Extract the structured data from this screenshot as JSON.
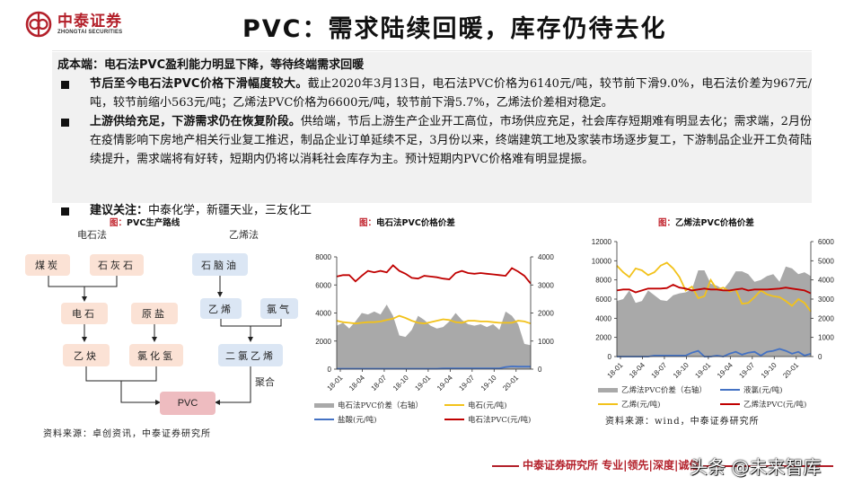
{
  "header": {
    "logo_cn": "中泰证券",
    "logo_en": "ZHONGTAI SECURITIES",
    "title": "PVC：需求陆续回暖，库存仍待去化"
  },
  "summary": {
    "lead": "成本端：电石法PVC盈利能力明显下降，等待终端需求回暖",
    "bullets": [
      {
        "bold": "节后至今电石法PVC价格下滑幅度较大。",
        "text": "截止2020年3月13日，电石法PVC价格为6140元/吨，较节前下滑9.0%，电石法价差为967元/吨，较节前缩小563元/吨；乙烯法PVC价格为6600元/吨，较节前下滑5.7%，乙烯法价差相对稳定。"
      },
      {
        "bold": "上游供给充足，下游需求仍在恢复阶段。",
        "text": "供给端，节后上游生产企业开工高位，市场供应充足，社会库存短期难有明显去化；需求端，2月份在疫情影响下房地产相关行业复工推迟，制品企业订单延续不足，3月份以来，终端建筑工地及家装市场逐步复工，下游制品企业开工负荷陆续提升，需求端将有好转，短期内仍将以消耗社会库存为主。预计短期内PVC价格难有明显提振。"
      }
    ],
    "recommendation": {
      "bold": "建议关注：",
      "text": "中泰化学，新疆天业，三友化工"
    }
  },
  "figures": {
    "tag": "图：",
    "flow": {
      "title": "PVC生产路线",
      "left_route": "电石法",
      "right_route": "乙烯法",
      "nodes": {
        "coal": "煤炭",
        "limestone": "石灰石",
        "carbide": "电石",
        "salt": "原盐",
        "acetylene": "乙炔",
        "hcl": "氯化氢",
        "naphtha": "石脑油",
        "ethylene": "乙烯",
        "chlorine": "氯气",
        "edc": "二氯乙烯",
        "pvc": "PVC"
      },
      "polymerize": "聚合",
      "source": "资料来源：卓创资讯，中泰证券研究所"
    },
    "chart1_title": "电石法PVC价格价差",
    "chart2_title": "乙烯法PVC价格价差",
    "chart2_source": "资料来源：wind，中泰证券研究所"
  },
  "chart_data": [
    {
      "type": "line",
      "title": "电石法PVC价格价差",
      "x_ticks": [
        "18-01",
        "18-04",
        "18-07",
        "18-10",
        "19-01",
        "19-04",
        "19-07",
        "19-10",
        "20-01"
      ],
      "ylim_left": [
        0,
        8000
      ],
      "yticks_left": [
        0,
        2000,
        4000,
        6000,
        8000
      ],
      "ylim_right": [
        0,
        4000
      ],
      "yticks_right": [
        0,
        1000,
        2000,
        3000,
        4000
      ],
      "series": [
        {
          "name": "电石法PVC价差（右轴）",
          "kind": "area",
          "axis": "right",
          "color": "#a9a9a9",
          "values": [
            1550,
            1650,
            1450,
            1700,
            2000,
            1950,
            2050,
            1950,
            2300,
            1900,
            1200,
            1150,
            1400,
            1900,
            1750,
            1550,
            1450,
            1500,
            1700,
            2000,
            1750,
            1600,
            1550,
            1600,
            1500,
            1600,
            1400,
            2050,
            1900,
            1600,
            900,
            850
          ]
        },
        {
          "name": "电石(元/吨)",
          "kind": "line",
          "axis": "left",
          "color": "#f2c21b",
          "values": [
            3450,
            3350,
            3300,
            3250,
            3300,
            3350,
            3350,
            3400,
            3500,
            3600,
            3800,
            3650,
            3450,
            3300,
            3250,
            3350,
            3450,
            3550,
            3500,
            3350,
            3300,
            3450,
            3450,
            3400,
            3400,
            3350,
            3300,
            3300,
            3300,
            3450,
            3400,
            3250
          ]
        },
        {
          "name": "盐酸(元/吨)",
          "kind": "line",
          "axis": "left",
          "color": "#4472c4",
          "values": [
            30,
            30,
            30,
            30,
            30,
            30,
            30,
            30,
            30,
            30,
            30,
            30,
            30,
            30,
            30,
            30,
            30,
            50,
            60,
            60,
            60,
            60,
            60,
            60,
            60,
            60,
            60,
            150,
            200,
            180,
            180,
            180
          ]
        },
        {
          "name": "电石法PVC(元/吨)",
          "kind": "line",
          "axis": "left",
          "color": "#c00000",
          "values": [
            6600,
            6700,
            6700,
            6250,
            6650,
            7000,
            6900,
            7000,
            6900,
            7400,
            7000,
            6800,
            6500,
            6450,
            6650,
            6600,
            6550,
            6450,
            6400,
            6850,
            7000,
            6850,
            6800,
            6850,
            6800,
            6750,
            6700,
            6650,
            7200,
            6950,
            6650,
            6100
          ]
        }
      ]
    },
    {
      "type": "line",
      "title": "乙烯法PVC价格价差",
      "x_ticks": [
        "18-01",
        "18-04",
        "18-07",
        "18-10",
        "19-01",
        "19-04",
        "19-07",
        "19-10",
        "20-01"
      ],
      "ylim_left": [
        0,
        12000
      ],
      "yticks_left": [
        0,
        2000,
        4000,
        6000,
        8000,
        10000,
        12000
      ],
      "ylim_right": [
        0,
        6000
      ],
      "yticks_right": [
        0,
        1000,
        2000,
        3000,
        4000,
        5000,
        6000
      ],
      "series": [
        {
          "name": "乙烯法PVC价差（右轴）",
          "kind": "area",
          "axis": "right",
          "color": "#a9a9a9",
          "values": [
            2900,
            3000,
            3450,
            2800,
            2900,
            3450,
            3200,
            2950,
            2900,
            3200,
            3300,
            3350,
            3500,
            4500,
            4500,
            3800,
            3700,
            3500,
            3900,
            4450,
            4450,
            4300,
            3900,
            4000,
            4200,
            4300,
            3900,
            4700,
            4600,
            4300,
            4400,
            4200
          ]
        },
        {
          "name": "液氯(元/吨)",
          "kind": "line",
          "axis": "left",
          "color": "#4472c4",
          "values": [
            0,
            0,
            0,
            0,
            0,
            0,
            100,
            100,
            100,
            100,
            100,
            100,
            400,
            600,
            0,
            0,
            100,
            0,
            300,
            500,
            200,
            400,
            500,
            100,
            500,
            600,
            800,
            600,
            300,
            500,
            100,
            300
          ]
        },
        {
          "name": "乙烯(元/吨)",
          "kind": "line",
          "axis": "left",
          "color": "#f2c21b",
          "values": [
            9500,
            8800,
            8300,
            9200,
            9000,
            8500,
            8800,
            9500,
            9800,
            9200,
            8300,
            6900,
            7300,
            6100,
            6300,
            8000,
            7000,
            7200,
            6800,
            7000,
            5500,
            5600,
            6200,
            6900,
            6500,
            6300,
            6200,
            5800,
            5300,
            6000,
            5600,
            4700
          ]
        },
        {
          "name": "乙烯法PVC(元/吨)",
          "kind": "line",
          "axis": "left",
          "color": "#c00000",
          "values": [
            6900,
            7000,
            7000,
            6700,
            6900,
            7100,
            7100,
            7100,
            7150,
            7500,
            7200,
            7100,
            6900,
            7000,
            7100,
            7000,
            7000,
            6900,
            6900,
            7000,
            7100,
            6900,
            7000,
            7000,
            7000,
            7050,
            7100,
            7200,
            7100,
            7000,
            6900,
            6600
          ]
        }
      ]
    }
  ],
  "legend1": [
    "电石法PVC价差（右轴）",
    "电石(元/吨)",
    "盐酸(元/吨)",
    "电石法PVC(元/吨)"
  ],
  "legend2": [
    "乙烯法PVC价差（右轴）",
    "液氯(元/吨)",
    "乙烯(元/吨)",
    "乙烯法PVC(元/吨)"
  ],
  "footer": {
    "text": "中泰证券研究所 专业|领先|深度|诚信",
    "watermark": "头条 @未来智库"
  }
}
